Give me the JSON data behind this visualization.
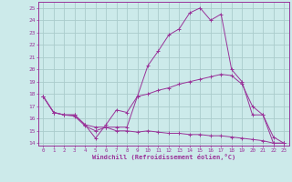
{
  "xlabel": "Windchill (Refroidissement éolien,°C)",
  "xlim": [
    -0.5,
    23.5
  ],
  "ylim": [
    13.8,
    25.5
  ],
  "yticks": [
    14,
    15,
    16,
    17,
    18,
    19,
    20,
    21,
    22,
    23,
    24,
    25
  ],
  "xticks": [
    0,
    1,
    2,
    3,
    4,
    5,
    6,
    7,
    8,
    9,
    10,
    11,
    12,
    13,
    14,
    15,
    16,
    17,
    18,
    19,
    20,
    21,
    22,
    23
  ],
  "background_color": "#cceaea",
  "grid_color": "#aacccc",
  "line_color": "#993399",
  "line1_x": [
    0,
    1,
    2,
    3,
    4,
    5,
    6,
    7,
    8,
    9,
    10,
    11,
    12,
    13,
    14,
    15,
    16,
    17,
    18,
    19,
    20,
    21,
    22,
    23
  ],
  "line1_y": [
    17.8,
    16.5,
    16.3,
    16.3,
    15.5,
    14.4,
    15.5,
    16.7,
    16.5,
    17.8,
    20.3,
    21.5,
    22.8,
    23.3,
    24.6,
    25.0,
    24.0,
    24.5,
    20.0,
    19.0,
    16.3,
    16.3,
    14.0,
    14.0
  ],
  "line2_x": [
    0,
    1,
    2,
    3,
    4,
    5,
    6,
    7,
    8,
    9,
    10,
    11,
    12,
    13,
    14,
    15,
    16,
    17,
    18,
    19,
    20,
    21,
    22,
    23
  ],
  "line2_y": [
    17.8,
    16.5,
    16.3,
    16.3,
    15.5,
    15.3,
    15.3,
    15.3,
    15.3,
    17.8,
    18.0,
    18.3,
    18.5,
    18.8,
    19.0,
    19.2,
    19.4,
    19.6,
    19.5,
    18.8,
    17.0,
    16.3,
    14.5,
    14.0
  ],
  "line3_x": [
    0,
    1,
    2,
    3,
    4,
    5,
    6,
    7,
    8,
    9,
    10,
    11,
    12,
    13,
    14,
    15,
    16,
    17,
    18,
    19,
    20,
    21,
    22,
    23
  ],
  "line3_y": [
    17.8,
    16.5,
    16.3,
    16.2,
    15.4,
    15.0,
    15.3,
    15.0,
    15.0,
    14.9,
    15.0,
    14.9,
    14.8,
    14.8,
    14.7,
    14.7,
    14.6,
    14.6,
    14.5,
    14.4,
    14.3,
    14.2,
    14.0,
    14.0
  ]
}
